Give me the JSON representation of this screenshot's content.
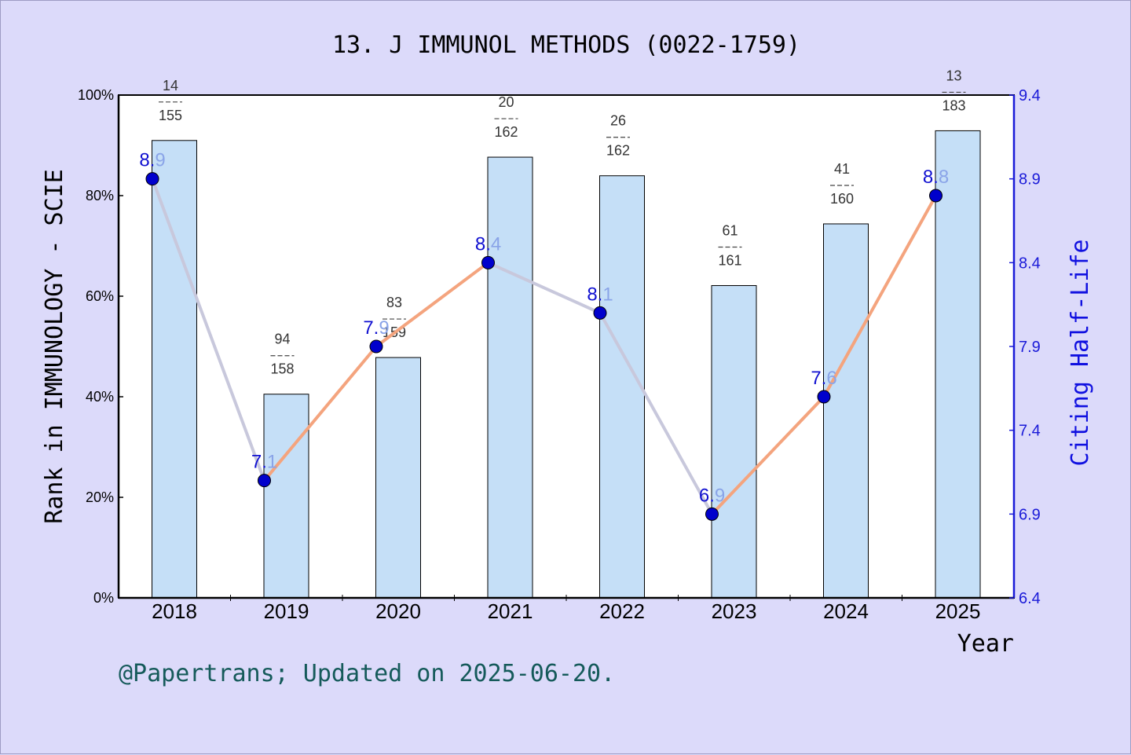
{
  "chart_data": {
    "type": "bar",
    "title": "13. J IMMUNOL METHODS (0022-1759)",
    "xlabel": "Year",
    "ylabel": "Rank in IMMUNOLOGY - SCIE",
    "y2label": "Citing Half-Life",
    "categories": [
      "2018",
      "2019",
      "2020",
      "2021",
      "2022",
      "2023",
      "2024",
      "2025"
    ],
    "series": [
      {
        "axis": "left",
        "kind": "bar",
        "values": [
          90.97,
          40.51,
          47.8,
          87.65,
          83.95,
          62.11,
          74.38,
          92.9
        ],
        "rank": [
          "14",
          "94",
          "83",
          "20",
          "26",
          "61",
          "41",
          "13"
        ],
        "total": [
          "155",
          "158",
          "159",
          "162",
          "162",
          "161",
          "160",
          "183"
        ],
        "color": "#c5dff7"
      },
      {
        "axis": "right",
        "kind": "line",
        "values": [
          8.9,
          7.1,
          7.9,
          8.4,
          8.1,
          6.9,
          7.6,
          8.8
        ],
        "labels": [
          "8.9",
          "7.1",
          "7.9",
          "8.4",
          "8.1",
          "6.9",
          "7.6",
          "8.8"
        ],
        "color_up": "#f4a47e",
        "color_down": "#c8c8dc",
        "marker_color": "#0000cc"
      }
    ],
    "ylim": [
      0,
      100
    ],
    "y_ticks": [
      "0%",
      "20%",
      "40%",
      "60%",
      "80%",
      "100%"
    ],
    "y2lim": [
      6.4,
      9.4
    ],
    "y2_ticks": [
      "6.4",
      "6.9",
      "7.4",
      "7.9",
      "8.4",
      "8.9",
      "9.4"
    ],
    "grid": false,
    "legend": "none"
  },
  "footer": "@Papertrans; Updated on 2025-06-20."
}
